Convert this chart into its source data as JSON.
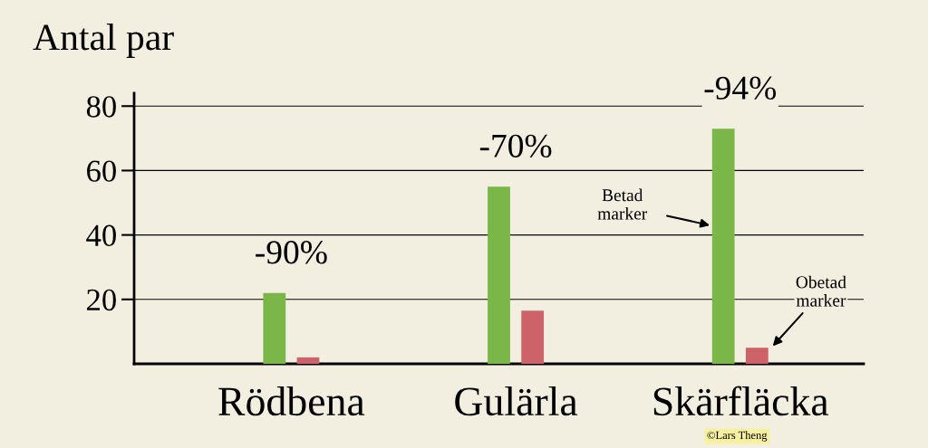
{
  "chart_data": {
    "type": "bar",
    "title": "Antal par",
    "categories": [
      "Rödbena",
      "Gulärla",
      "Skärfläcka"
    ],
    "series": [
      {
        "name": "Betad marker",
        "color": "#7ab648",
        "values": [
          22,
          55,
          73
        ]
      },
      {
        "name": "Obetad marker",
        "color": "#cd6368",
        "values": [
          2,
          16.5,
          5
        ]
      }
    ],
    "ylim": [
      0,
      84
    ],
    "yticks": [
      20,
      40,
      60,
      80
    ],
    "grid": "y",
    "annotations": [
      "-90%",
      "-70%",
      "-94%",
      "©Lars Theng"
    ]
  }
}
